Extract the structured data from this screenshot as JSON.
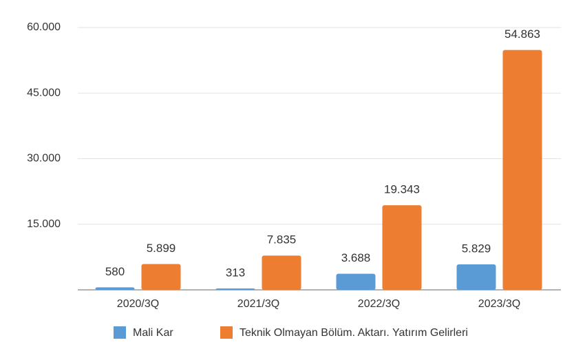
{
  "chart_data": {
    "type": "bar",
    "categories": [
      "2020/3Q",
      "2021/3Q",
      "2022/3Q",
      "2023/3Q"
    ],
    "series": [
      {
        "name": "Mali Kar",
        "color": "#5b9bd5",
        "values": [
          580,
          313,
          3688,
          5829
        ],
        "value_labels": [
          "580",
          "313",
          "3.688",
          "5.829"
        ]
      },
      {
        "name": "Teknik Olmayan Bölüm. Aktarı. Yatırım Gelirleri",
        "color": "#ed7d31",
        "values": [
          5899,
          7835,
          19343,
          54863
        ],
        "value_labels": [
          "5.899",
          "7.835",
          "19.343",
          "54.863"
        ]
      }
    ],
    "ylim": [
      0,
      60000
    ],
    "yticks": [
      {
        "value": 15000,
        "label": "15.000"
      },
      {
        "value": 30000,
        "label": "30.000"
      },
      {
        "value": 45000,
        "label": "45.000"
      },
      {
        "value": 60000,
        "label": "60.000"
      }
    ],
    "grid": true,
    "legend": "bottom"
  }
}
